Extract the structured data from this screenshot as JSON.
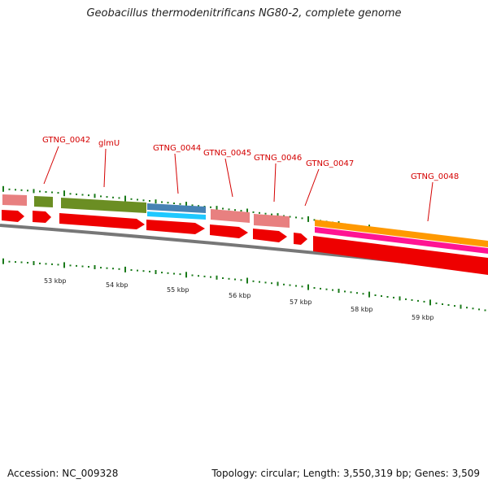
{
  "title": "Geobacillus thermodenitrificans NG80-2, complete genome",
  "footer": {
    "accession": "Accession: NC_009328",
    "topology": "Topology: circular; Length: 3,550,319 bp; Genes: 3,509"
  },
  "colors": {
    "cds": "#ee0000",
    "pseudo_pink": "#e88080",
    "olive": "#6b8e23",
    "steel_blue": "#4682b4",
    "light_blue": "#1ec8ff",
    "orange": "#ff9900",
    "magenta": "#ff1493",
    "tick_green": "#1a7a1a",
    "backbone": "#777777",
    "label_red": "#d40000"
  },
  "scale_labels": [
    "53 kbp",
    "54 kbp",
    "55 kbp",
    "56 kbp",
    "57 kbp",
    "58 kbp",
    "59 kbp"
  ],
  "gene_labels": [
    "GTNG_0042",
    "glmU",
    "GTNG_0044",
    "GTNG_0045",
    "GTNG_0046",
    "GTNG_0047",
    "GTNG_0048"
  ]
}
